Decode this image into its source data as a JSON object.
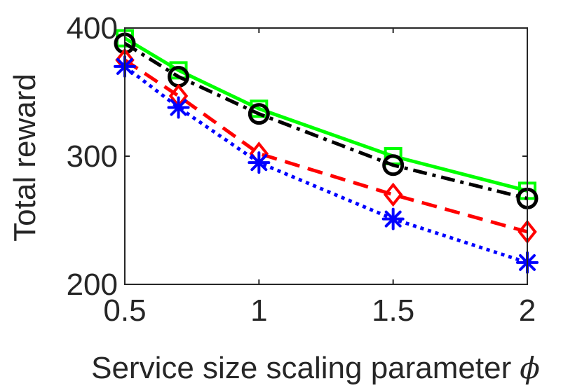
{
  "chart_data": {
    "type": "line",
    "title": "",
    "xlabel": "Service size scaling parameter",
    "xlabel_symbol": "ϕ",
    "ylabel": "Total reward",
    "x": [
      0.5,
      0.7,
      1,
      1.5,
      2
    ],
    "xlim": [
      0.5,
      2
    ],
    "ylim": [
      200,
      400
    ],
    "xticks": [
      0.5,
      1,
      1.5,
      2
    ],
    "xtick_labels": [
      "0.5",
      "1",
      "1.5",
      "2"
    ],
    "yticks": [
      200,
      300,
      400
    ],
    "ytick_labels": [
      "200",
      "300",
      "400"
    ],
    "grid": false,
    "series": [
      {
        "name": "green-square",
        "color": "#00ff00",
        "line": "solid",
        "marker": "square",
        "values": [
          392,
          367,
          337,
          300,
          273
        ]
      },
      {
        "name": "black-circle",
        "color": "#000000",
        "line": "dashdot",
        "marker": "circle",
        "values": [
          388,
          362,
          333,
          293,
          267
        ]
      },
      {
        "name": "red-diamond",
        "color": "#ff0000",
        "line": "dashed",
        "marker": "diamond",
        "values": [
          375,
          347,
          302,
          270,
          241
        ]
      },
      {
        "name": "blue-asterisk",
        "color": "#0000ff",
        "line": "dotted",
        "marker": "asterisk",
        "values": [
          370,
          338,
          295,
          251,
          217
        ]
      }
    ]
  }
}
